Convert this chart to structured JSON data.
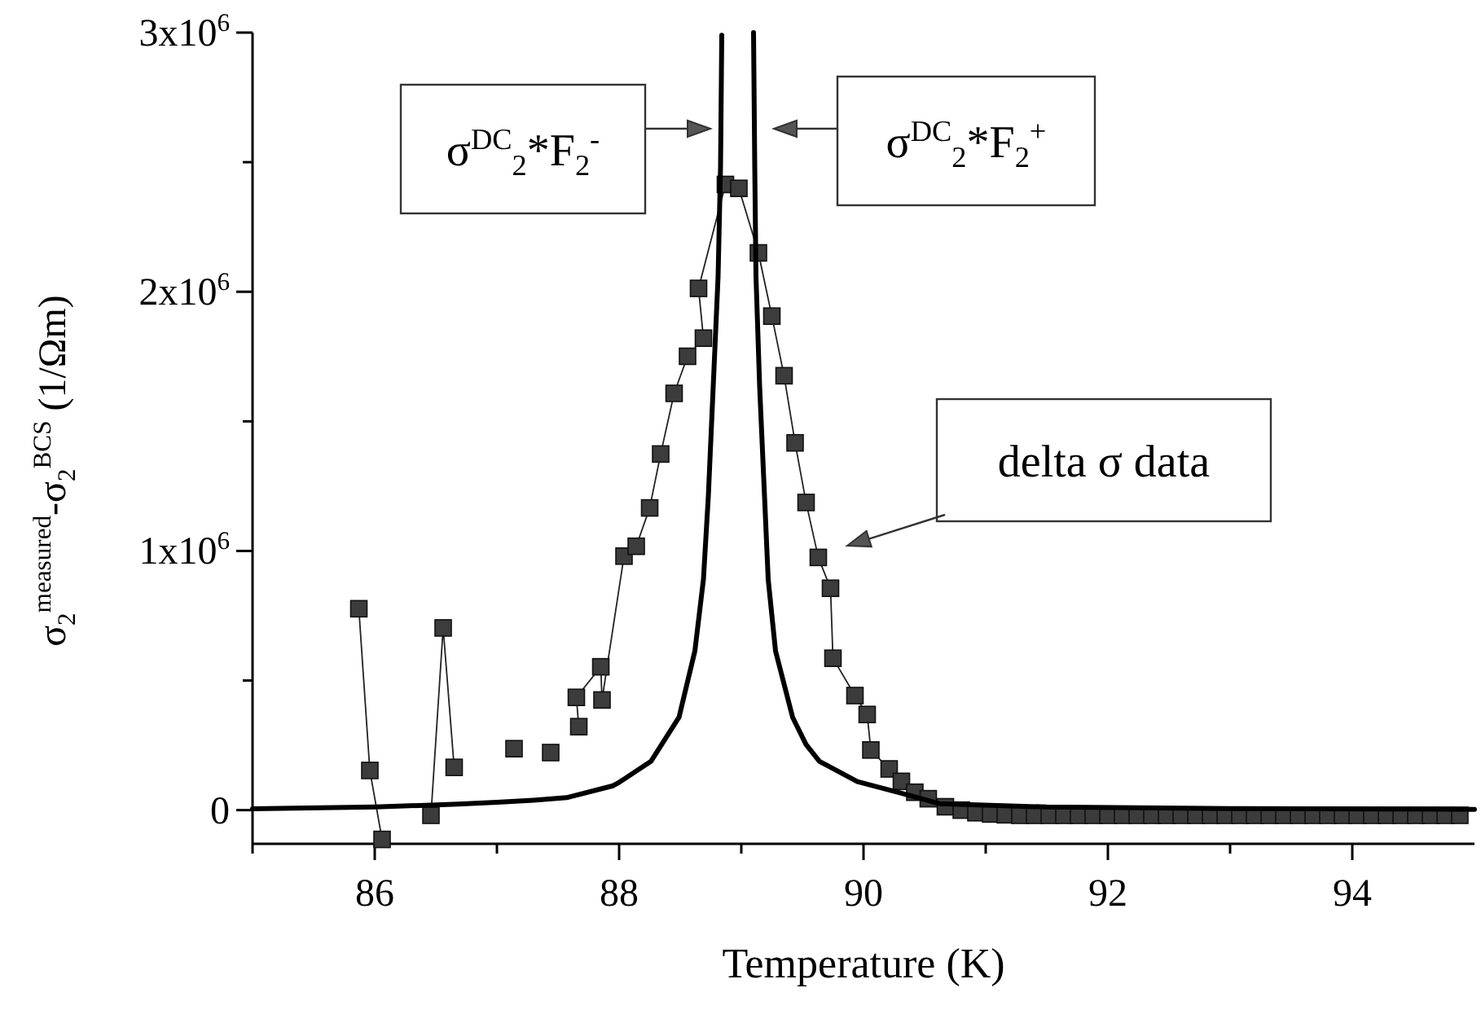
{
  "chart_data": {
    "type": "line",
    "xlabel": "Temperature (K)",
    "ylabel": "σ$_{2}$$^{measured}$-σ$_{2}$$^{BCS}$ (1/Ωm)",
    "xlim": [
      85,
      95
    ],
    "xticks": [
      {
        "value": 85,
        "label": null
      },
      86,
      {
        "value": 87,
        "label": null
      },
      88,
      {
        "value": 89,
        "label": null
      },
      90,
      {
        "value": 91,
        "label": null
      },
      92,
      {
        "value": 93,
        "label": null
      },
      94
    ],
    "ylim": [
      -130000,
      3000000
    ],
    "yticks": [
      0,
      {
        "value": 500000,
        "label": null
      },
      {
        "value": 1000000,
        "label": "1x10$^{6}$"
      },
      {
        "value": 1500000,
        "label": null
      },
      {
        "value": 2000000,
        "label": "2x10$^{6}$"
      },
      {
        "value": 2500000,
        "label": null
      },
      {
        "value": 3000000,
        "label": "3x10$^{6}$"
      }
    ],
    "grid": false,
    "series": [
      {
        "color": "#3c3c3c",
        "marker": "square",
        "line_style": "solid",
        "x": [
          85.87,
          85.96,
          86.06,
          86.25,
          86.46,
          86.56,
          86.65,
          86.9,
          87.14,
          87.3,
          87.44,
          87.55,
          87.67,
          87.65,
          87.85,
          87.86,
          88.04,
          88.14,
          88.25,
          88.34,
          88.45,
          88.56,
          88.69,
          88.65,
          88.87,
          88.98,
          89.14,
          89.25,
          89.35,
          89.44,
          89.53,
          89.63,
          89.73,
          89.75,
          89.93,
          90.03,
          90.06,
          90.21,
          90.31,
          90.42,
          90.53,
          90.67,
          90.8,
          90.92,
          91.04,
          91.16,
          91.28,
          91.4,
          91.52,
          91.64,
          91.76,
          91.88,
          92.0,
          92.12,
          92.24,
          92.36,
          92.48,
          92.6,
          92.72,
          92.84,
          92.96,
          93.08,
          93.2,
          93.32,
          93.44,
          93.56,
          93.68,
          93.8,
          93.92,
          94.04,
          94.16,
          94.28,
          94.4,
          94.52,
          94.64,
          94.76,
          94.88
        ],
        "values": [
          777000,
          153000,
          -113000,
          null,
          -20000,
          703000,
          165000,
          null,
          237000,
          null,
          222000,
          null,
          322000,
          435000,
          553000,
          425000,
          980000,
          1018000,
          1166000,
          1374000,
          1608000,
          1751000,
          1821000,
          2013000,
          2414000,
          2399000,
          2150000,
          1906000,
          1676000,
          1417000,
          1187000,
          975000,
          856000,
          586000,
          442000,
          369000,
          232000,
          159000,
          111000,
          69000,
          44000,
          13000,
          0,
          -10000,
          -15000,
          -18000,
          -20000,
          -20000,
          -20000,
          -20000,
          -20000,
          -20000,
          -20000,
          -20000,
          -20000,
          -20000,
          -20000,
          -20000,
          -20000,
          -20000,
          -20000,
          -20000,
          -20000,
          -20000,
          -20000,
          -20000,
          -20000,
          -20000,
          -20000,
          -20000,
          -20000,
          -20000,
          -20000,
          -20000,
          -20000,
          -20000,
          -20000
        ]
      },
      {
        "color": "#000000",
        "marker": "none",
        "line_style": "solid",
        "x": [
          85,
          86,
          86.68,
          87,
          87.3,
          87.57,
          87.95,
          88.0,
          88.26,
          88.49,
          88.62,
          88.69,
          88.73,
          88.77,
          88.81,
          88.83,
          88.84
        ],
        "values": [
          5000,
          12000,
          23000,
          30000,
          38000,
          48000,
          94000,
          107000,
          188000,
          358000,
          614000,
          890000,
          1210000,
          1634000,
          2060000,
          2484000,
          2990000
        ]
      },
      {
        "color": "#000000",
        "marker": "none",
        "line_style": "solid",
        "x": [
          89.1,
          89.11,
          89.12,
          89.15,
          89.19,
          89.22,
          89.28,
          89.42,
          89.53,
          89.64,
          89.95,
          90.31,
          90.62,
          91.5,
          93,
          95
        ],
        "values": [
          3000000,
          2480000,
          2060000,
          1634000,
          1210000,
          890000,
          614000,
          358000,
          253000,
          188000,
          110000,
          65000,
          25000,
          12000,
          6000,
          3000
        ]
      }
    ],
    "annotations": [
      "σ$^{DC}$$_{2}$*F$_{2}$$^{-}$",
      "σ$^{DC}$$_{2}$*F$_{2}$$^{+}$",
      "delta σ data"
    ]
  }
}
